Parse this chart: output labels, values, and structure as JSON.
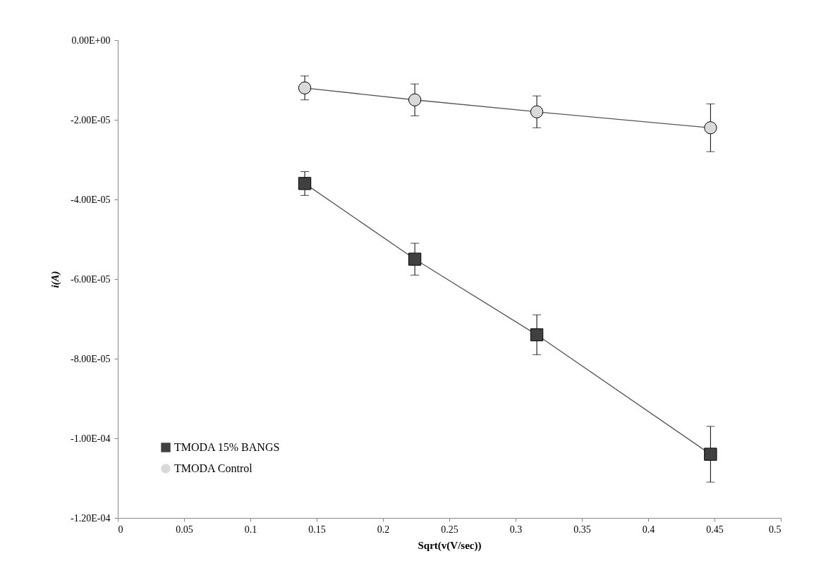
{
  "chart_data": {
    "type": "line",
    "xlabel": "Sqrt(v(V/sec))",
    "ylabel": "i(A)",
    "x": [
      0.141,
      0.224,
      0.316,
      0.447
    ],
    "series": [
      {
        "name": "TMODA 15% BANGS",
        "color": "#404040",
        "marker": "square",
        "values": [
          -3.6e-05,
          -5.5e-05,
          -7.4e-05,
          -0.000104
        ],
        "errors": [
          3e-06,
          4e-06,
          5e-06,
          7e-06
        ]
      },
      {
        "name": "TMODA Control",
        "color": "#d9d9d9",
        "marker": "circle",
        "values": [
          -1.2e-05,
          -1.5e-05,
          -1.8e-05,
          -2.2e-05
        ],
        "errors": [
          3e-06,
          4e-06,
          4e-06,
          6e-06
        ]
      }
    ],
    "xlim": [
      0,
      0.5
    ],
    "xticks": [
      0,
      0.05,
      0.1,
      0.15,
      0.2,
      0.25,
      0.3,
      0.35,
      0.4,
      0.45,
      0.5
    ],
    "ylim": [
      -0.00012,
      0
    ],
    "yticks": [
      {
        "value": 0,
        "label": "0.00E+00"
      },
      {
        "value": -2e-05,
        "label": "-2.00E-05"
      },
      {
        "value": -4e-05,
        "label": "-4.00E-05"
      },
      {
        "value": -6e-05,
        "label": "-6.00E-05"
      },
      {
        "value": -8e-05,
        "label": "-8.00E-05"
      },
      {
        "value": -0.0001,
        "label": "-1.00E-04"
      },
      {
        "value": -0.00012,
        "label": "-1.20E-04"
      }
    ],
    "grid": false,
    "legend": "bottom left",
    "line_style": "solid"
  }
}
